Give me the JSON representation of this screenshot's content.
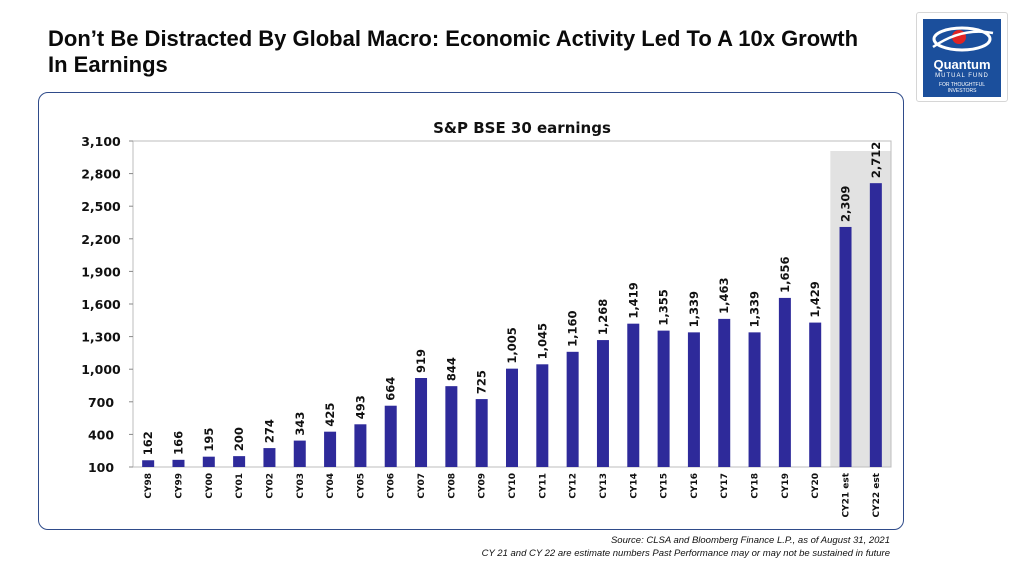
{
  "page": {
    "title": "Don’t Be Distracted By Global Macro: Economic Activity Led To A 10x Growth In Earnings",
    "source_note": "Source: CLSA and Bloomberg Finance L.P., as of  August 31, 2021",
    "disclaimer": "CY 21 and CY 22 are estimate numbers Past Performance may or may not be  sustained in future"
  },
  "logo": {
    "brand": "Quantum",
    "subtitle": "MUTUAL FUND",
    "tagline_1": "FOR THOUGHTFUL",
    "tagline_2": "INVESTORS",
    "colors": {
      "background": "#1b4f9c",
      "accent": "#e02424"
    }
  },
  "chart_data": {
    "type": "bar",
    "title": "S&P BSE 30 earnings",
    "xlabel": "",
    "ylabel": "",
    "categories": [
      "CY98",
      "CY99",
      "CY00",
      "CY01",
      "CY02",
      "CY03",
      "CY04",
      "CY05",
      "CY06",
      "CY07",
      "CY08",
      "CY09",
      "CY10",
      "CY11",
      "CY12",
      "CY13",
      "CY14",
      "CY15",
      "CY16",
      "CY17",
      "CY18",
      "CY19",
      "CY20",
      "CY21 est",
      "CY22 est"
    ],
    "values": [
      162,
      166,
      195,
      200,
      274,
      343,
      425,
      493,
      664,
      919,
      844,
      725,
      1005,
      1045,
      1160,
      1268,
      1419,
      1355,
      1339,
      1463,
      1339,
      1656,
      1429,
      2309,
      2712
    ],
    "data_labels": [
      "162",
      "166",
      "195",
      "200",
      "274",
      "343",
      "425",
      "493",
      "664",
      "919",
      "844",
      "725",
      "1,005",
      "1,045",
      "1,160",
      "1,268",
      "1,419",
      "1,355",
      "1,339",
      "1,463",
      "1,339",
      "1,656",
      "1,429",
      "2,309",
      "2,712"
    ],
    "ylim": [
      100,
      3100
    ],
    "yticks": [
      100,
      400,
      700,
      1000,
      1300,
      1600,
      1900,
      2200,
      2500,
      2800,
      3100
    ],
    "ytick_labels": [
      "100",
      "400",
      "700",
      "1,000",
      "1,300",
      "1,600",
      "1,900",
      "2,200",
      "2,500",
      "2,800",
      "3,100"
    ],
    "estimate_categories": [
      "CY21 est",
      "CY22 est"
    ],
    "grid": false,
    "legend": "none",
    "colors": {
      "bar": "#2e2a9a",
      "estimate_shade": "#e2e2e2",
      "panel_border": "#2f4b8a"
    }
  }
}
